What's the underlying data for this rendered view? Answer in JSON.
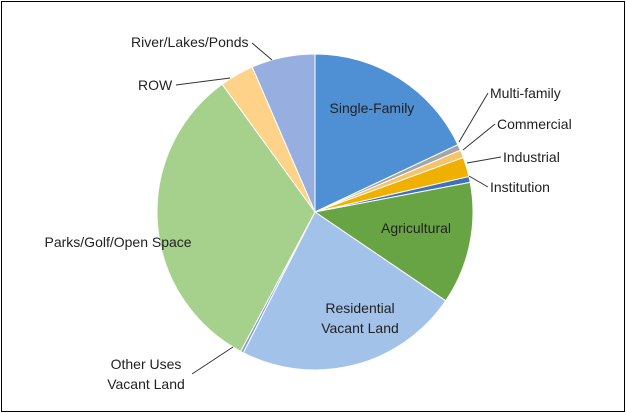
{
  "chart_data": {
    "type": "pie",
    "categories": [
      "Single-Family",
      "Multi-family",
      "Commercial",
      "Industrial",
      "Institution",
      "Agricultural",
      "Residential Vacant Land",
      "Other Uses Vacant Land",
      "Parks/Golf/Open Space",
      "ROW",
      "River/Lakes/Ponds"
    ],
    "values": [
      18,
      0.6,
      0.8,
      2,
      0.6,
      12.5,
      23,
      0.3,
      32.2,
      3.5,
      6.5
    ],
    "colors": [
      "#4f8fd3",
      "#a5a5a5",
      "#f5c46a",
      "#f0b000",
      "#3f6fc0",
      "#68a444",
      "#a2c2ea",
      "#7f9fcf",
      "#a6d18c",
      "#ffd28a",
      "#97aee0"
    ]
  }
}
